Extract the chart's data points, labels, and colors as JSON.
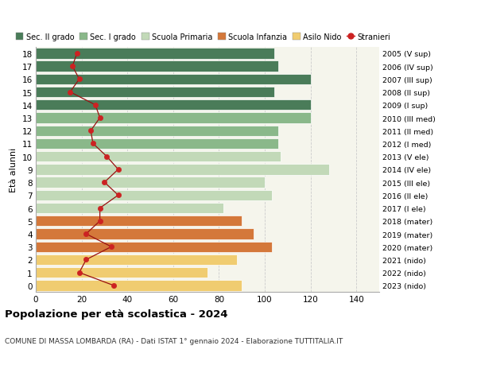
{
  "ages": [
    18,
    17,
    16,
    15,
    14,
    13,
    12,
    11,
    10,
    9,
    8,
    7,
    6,
    5,
    4,
    3,
    2,
    1,
    0
  ],
  "years": [
    "2005 (V sup)",
    "2006 (IV sup)",
    "2007 (III sup)",
    "2008 (II sup)",
    "2009 (I sup)",
    "2010 (III med)",
    "2011 (II med)",
    "2012 (I med)",
    "2013 (V ele)",
    "2014 (IV ele)",
    "2015 (III ele)",
    "2016 (II ele)",
    "2017 (I ele)",
    "2018 (mater)",
    "2019 (mater)",
    "2020 (mater)",
    "2021 (nido)",
    "2022 (nido)",
    "2023 (nido)"
  ],
  "bar_values": [
    104,
    106,
    120,
    104,
    120,
    120,
    106,
    106,
    107,
    128,
    100,
    103,
    82,
    90,
    95,
    103,
    88,
    75,
    90
  ],
  "bar_colors": [
    "#4a7c59",
    "#4a7c59",
    "#4a7c59",
    "#4a7c59",
    "#4a7c59",
    "#8ab88a",
    "#8ab88a",
    "#8ab88a",
    "#c2d9b8",
    "#c2d9b8",
    "#c2d9b8",
    "#c2d9b8",
    "#c2d9b8",
    "#d4783a",
    "#d4783a",
    "#d4783a",
    "#f0cc70",
    "#f0cc70",
    "#f0cc70"
  ],
  "stranieri": [
    18,
    16,
    19,
    15,
    26,
    28,
    24,
    25,
    31,
    36,
    30,
    36,
    28,
    28,
    22,
    33,
    22,
    19,
    34
  ],
  "title": "Popolazione per età scolastica - 2024",
  "subtitle": "COMUNE DI MASSA LOMBARDA (RA) - Dati ISTAT 1° gennaio 2024 - Elaborazione TUTTITALIA.IT",
  "ylabel_left": "Età alunni",
  "xlim": [
    0,
    150
  ],
  "xticks": [
    0,
    20,
    40,
    60,
    80,
    100,
    120,
    140
  ],
  "legend_labels": [
    "Sec. II grado",
    "Sec. I grado",
    "Scuola Primaria",
    "Scuola Infanzia",
    "Asilo Nido",
    "Stranieri"
  ],
  "legend_colors": [
    "#4a7c59",
    "#8ab88a",
    "#c2d9b8",
    "#d4783a",
    "#f0cc70",
    "#cc2222"
  ],
  "plot_bg": "#f5f5ec",
  "fig_bg": "#ffffff"
}
